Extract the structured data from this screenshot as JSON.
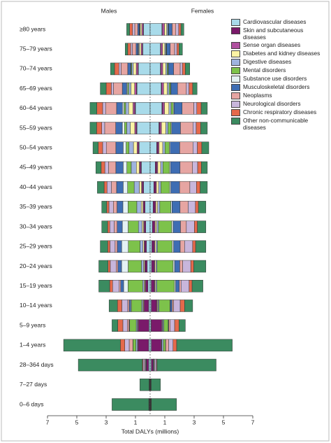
{
  "chart_data": {
    "type": "butterfly",
    "male_title": "Males",
    "female_title": "Females",
    "x_label": "Total DALYs (millions)",
    "male_xlim": [
      7,
      0
    ],
    "female_xlim": [
      0,
      7
    ],
    "male_xticks": [
      7,
      5,
      3,
      1
    ],
    "female_xticks": [
      1,
      3,
      5,
      7
    ],
    "categories": [
      "≥80 years",
      "75–79 years",
      "70–74 years",
      "65–69 years",
      "60–64 years",
      "55–59 years",
      "50–54 years",
      "45–49 years",
      "40–44 years",
      "35–39 years",
      "30–34 years",
      "25–29 years",
      "20–24 years",
      "15–19 years",
      "10–14 years",
      "5–9 years",
      "1–4 years",
      "28–364 days",
      "7–27 days",
      "0–6 days"
    ],
    "series": [
      {
        "name": "Cardiovascular diseases",
        "color": "#a9dbea",
        "males": [
          0.45,
          0.5,
          0.8,
          0.9,
          1.0,
          0.9,
          0.75,
          0.6,
          0.45,
          0.35,
          0.3,
          0.25,
          0.2,
          0.15,
          0.1,
          0.08,
          0.1,
          0.1,
          0.02,
          0.03
        ],
        "females": [
          0.8,
          0.7,
          0.7,
          0.75,
          0.8,
          0.6,
          0.45,
          0.35,
          0.25,
          0.2,
          0.15,
          0.12,
          0.1,
          0.08,
          0.08,
          0.07,
          0.08,
          0.08,
          0.02,
          0.02
        ]
      },
      {
        "name": "Skin and subcutaneous diseases",
        "color": "#7a1a6a",
        "males": [
          0.02,
          0.02,
          0.03,
          0.04,
          0.05,
          0.05,
          0.06,
          0.07,
          0.08,
          0.09,
          0.1,
          0.12,
          0.14,
          0.16,
          0.3,
          0.7,
          0.7,
          0.15,
          0.01,
          0.01
        ],
        "females": [
          0.03,
          0.03,
          0.04,
          0.05,
          0.06,
          0.07,
          0.08,
          0.1,
          0.12,
          0.14,
          0.15,
          0.16,
          0.18,
          0.2,
          0.35,
          0.7,
          0.65,
          0.12,
          0.01,
          0.01
        ]
      },
      {
        "name": "Sense organ diseases",
        "color": "#b0509f",
        "males": [
          0.1,
          0.1,
          0.12,
          0.12,
          0.12,
          0.1,
          0.08,
          0.07,
          0.06,
          0.05,
          0.05,
          0.04,
          0.04,
          0.04,
          0.05,
          0.06,
          0.05,
          0.02,
          0,
          0
        ],
        "females": [
          0.15,
          0.12,
          0.12,
          0.12,
          0.12,
          0.1,
          0.08,
          0.07,
          0.06,
          0.05,
          0.05,
          0.04,
          0.04,
          0.04,
          0.05,
          0.06,
          0.05,
          0.02,
          0,
          0
        ]
      },
      {
        "name": "Diabetes and kidney diseases",
        "color": "#fcf3a4",
        "males": [
          0.1,
          0.12,
          0.2,
          0.25,
          0.3,
          0.3,
          0.25,
          0.2,
          0.15,
          0.12,
          0.1,
          0.08,
          0.07,
          0.06,
          0.05,
          0.03,
          0.02,
          0.01,
          0,
          0
        ],
        "females": [
          0.15,
          0.15,
          0.2,
          0.25,
          0.3,
          0.3,
          0.25,
          0.2,
          0.15,
          0.12,
          0.1,
          0.08,
          0.07,
          0.06,
          0.05,
          0.03,
          0.02,
          0.01,
          0,
          0
        ]
      },
      {
        "name": "Digestive diseases",
        "color": "#9fb3df",
        "males": [
          0.05,
          0.06,
          0.1,
          0.15,
          0.2,
          0.25,
          0.3,
          0.35,
          0.35,
          0.3,
          0.25,
          0.2,
          0.15,
          0.1,
          0.08,
          0.08,
          0.1,
          0.05,
          0.01,
          0.01
        ],
        "females": [
          0.08,
          0.07,
          0.1,
          0.12,
          0.15,
          0.15,
          0.15,
          0.15,
          0.15,
          0.15,
          0.12,
          0.1,
          0.08,
          0.08,
          0.07,
          0.07,
          0.1,
          0.05,
          0.01,
          0.01
        ]
      },
      {
        "name": "Mental disorders",
        "color": "#7dc24b",
        "males": [
          0.02,
          0.03,
          0.05,
          0.08,
          0.12,
          0.15,
          0.2,
          0.3,
          0.45,
          0.6,
          0.7,
          0.8,
          0.9,
          1.0,
          0.7,
          0.45,
          0.2,
          0,
          0,
          0
        ],
        "females": [
          0.03,
          0.04,
          0.07,
          0.1,
          0.15,
          0.2,
          0.3,
          0.45,
          0.6,
          0.75,
          0.9,
          1.0,
          1.1,
          1.2,
          0.75,
          0.3,
          0.15,
          0,
          0,
          0
        ]
      },
      {
        "name": "Substance use disorders",
        "color": "#e4f1f4",
        "males": [
          0.01,
          0.01,
          0.03,
          0.06,
          0.1,
          0.15,
          0.2,
          0.25,
          0.3,
          0.35,
          0.4,
          0.45,
          0.45,
          0.3,
          0.05,
          0.01,
          0,
          0,
          0,
          0
        ],
        "females": [
          0.01,
          0.01,
          0.02,
          0.03,
          0.05,
          0.05,
          0.06,
          0.07,
          0.08,
          0.08,
          0.1,
          0.1,
          0.1,
          0.08,
          0.03,
          0.01,
          0,
          0,
          0,
          0
        ]
      },
      {
        "name": "Musculoskeletal disorders",
        "color": "#3e6db3",
        "males": [
          0.1,
          0.12,
          0.2,
          0.3,
          0.4,
          0.45,
          0.5,
          0.5,
          0.45,
          0.4,
          0.35,
          0.3,
          0.25,
          0.2,
          0.1,
          0.03,
          0.01,
          0,
          0,
          0
        ],
        "females": [
          0.25,
          0.25,
          0.35,
          0.45,
          0.55,
          0.6,
          0.65,
          0.65,
          0.6,
          0.55,
          0.5,
          0.45,
          0.35,
          0.25,
          0.12,
          0.03,
          0.01,
          0,
          0,
          0
        ]
      },
      {
        "name": "Neoplasms",
        "color": "#e6a5a2",
        "males": [
          0.2,
          0.25,
          0.45,
          0.6,
          0.75,
          0.75,
          0.65,
          0.5,
          0.35,
          0.25,
          0.2,
          0.15,
          0.12,
          0.1,
          0.1,
          0.12,
          0.25,
          0.05,
          0.01,
          0.01
        ],
        "females": [
          0.25,
          0.3,
          0.45,
          0.6,
          0.8,
          0.85,
          0.9,
          0.85,
          0.7,
          0.55,
          0.4,
          0.3,
          0.2,
          0.12,
          0.1,
          0.1,
          0.2,
          0.05,
          0.01,
          0.01
        ]
      },
      {
        "name": "Neurological disorders",
        "color": "#c8b6dc",
        "males": [
          0.15,
          0.12,
          0.15,
          0.15,
          0.2,
          0.2,
          0.25,
          0.25,
          0.3,
          0.3,
          0.3,
          0.35,
          0.4,
          0.45,
          0.4,
          0.3,
          0.3,
          0.1,
          0.01,
          0.02
        ],
        "females": [
          0.2,
          0.15,
          0.15,
          0.18,
          0.2,
          0.22,
          0.3,
          0.35,
          0.45,
          0.5,
          0.55,
          0.55,
          0.55,
          0.55,
          0.45,
          0.3,
          0.3,
          0.1,
          0.01,
          0.02
        ]
      },
      {
        "name": "Chronic respiratory diseases",
        "color": "#e5694b",
        "males": [
          0.2,
          0.2,
          0.3,
          0.35,
          0.4,
          0.35,
          0.3,
          0.25,
          0.2,
          0.15,
          0.15,
          0.15,
          0.15,
          0.2,
          0.3,
          0.35,
          0.3,
          0.05,
          0.01,
          0.01
        ],
        "females": [
          0.15,
          0.15,
          0.2,
          0.25,
          0.3,
          0.3,
          0.3,
          0.25,
          0.25,
          0.2,
          0.2,
          0.2,
          0.2,
          0.2,
          0.3,
          0.3,
          0.25,
          0.04,
          0.01,
          0.01
        ]
      },
      {
        "name": "Other non-communicable diseases",
        "color": "#3b8b60",
        "males": [
          0.2,
          0.17,
          0.27,
          0.4,
          0.46,
          0.45,
          0.36,
          0.36,
          0.46,
          0.34,
          0.4,
          0.51,
          0.63,
          0.74,
          0.57,
          0.39,
          3.87,
          4.37,
          0.63,
          2.51
        ],
        "females": [
          0.2,
          0.23,
          0.3,
          0.3,
          0.42,
          0.46,
          0.48,
          0.41,
          0.49,
          0.51,
          0.58,
          0.7,
          0.83,
          0.74,
          0.55,
          0.43,
          3.79,
          4.03,
          0.63,
          1.72
        ]
      }
    ]
  }
}
